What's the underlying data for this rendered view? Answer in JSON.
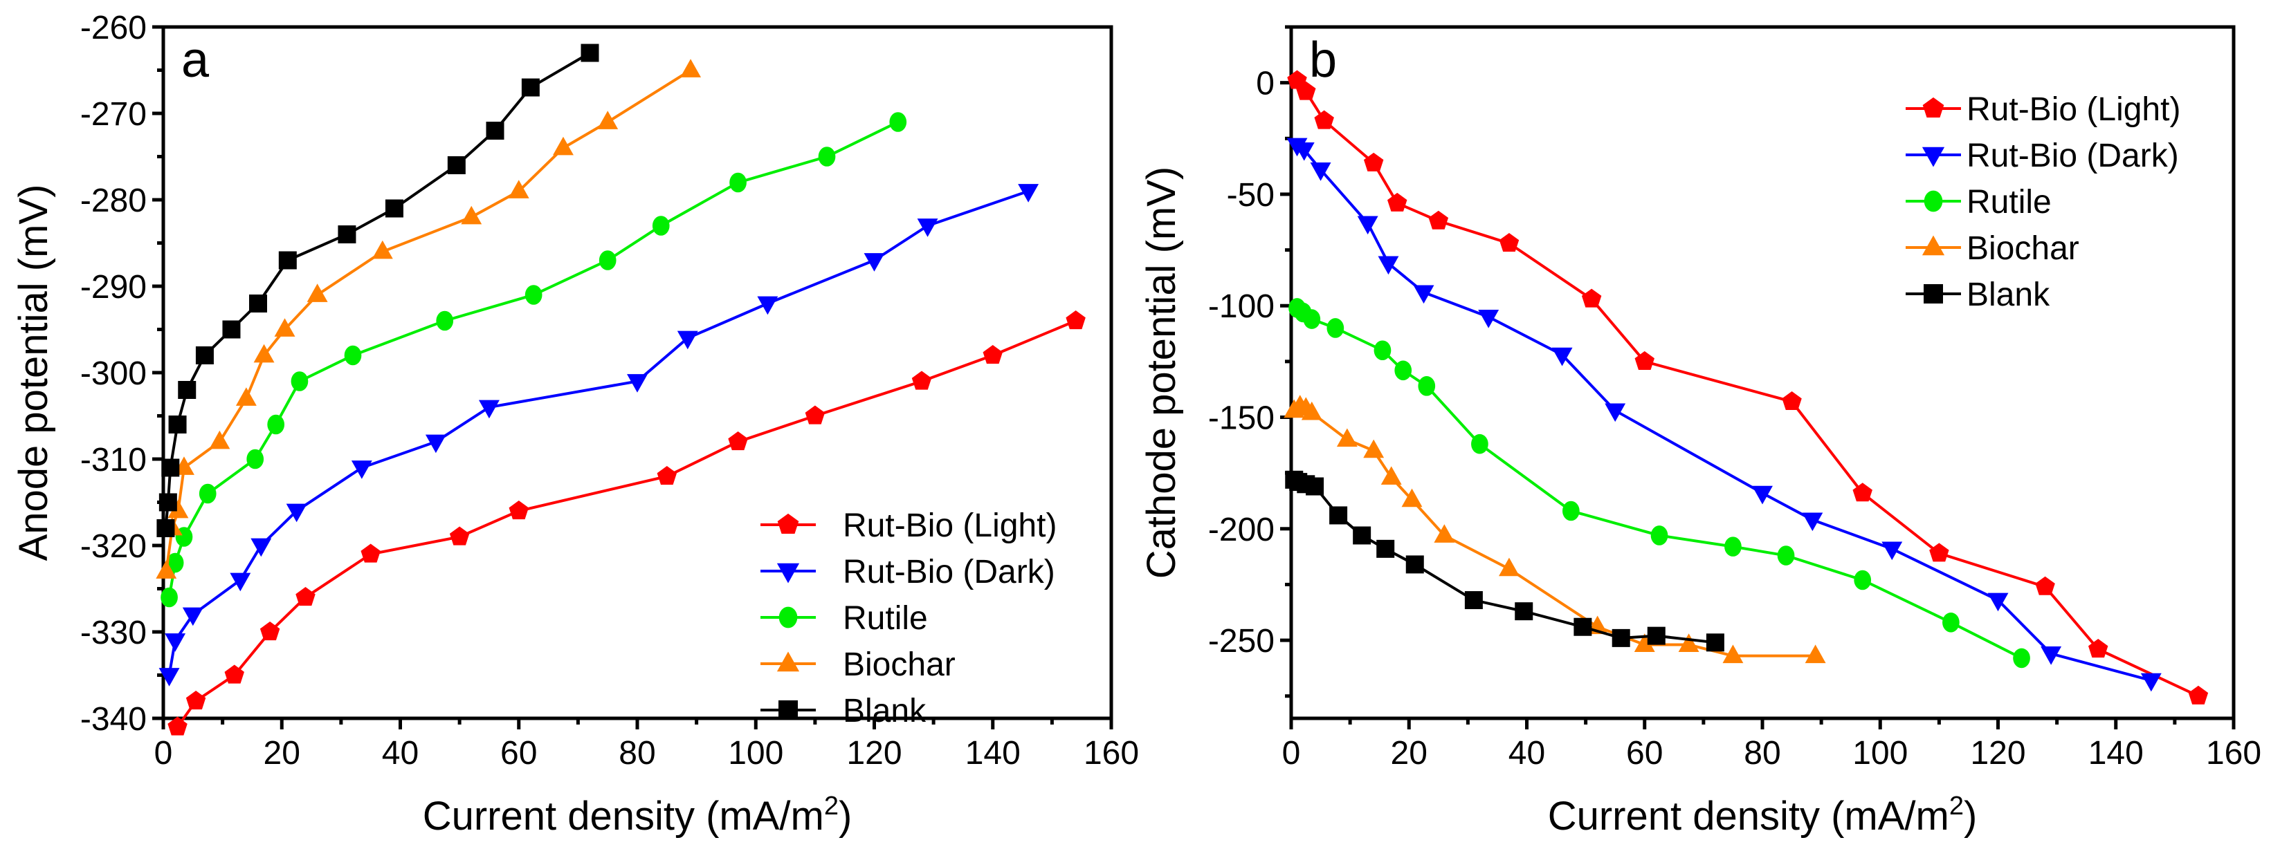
{
  "colors": {
    "light": "#ff0000",
    "dark": "#0000ff",
    "rutile": "#00ee00",
    "biochar": "#ff8000",
    "blank": "#000000"
  },
  "chart_data": [
    {
      "type": "line",
      "panel_label": "a",
      "xlabel": "Current density (mA/m",
      "xlabel_sup": "2",
      "xlabel_end": ")",
      "ylabel": "Anode potential (mV)",
      "xlim": [
        0,
        160
      ],
      "ylim": [
        -340,
        -260
      ],
      "xticks": [
        0,
        20,
        40,
        60,
        80,
        100,
        120,
        140,
        160
      ],
      "yticks": [
        -340,
        -330,
        -320,
        -310,
        -300,
        -290,
        -280,
        -270,
        -260
      ],
      "legend_position": "bottom-right",
      "series": [
        {
          "name": "Rut-Bio (Light)",
          "color_key": "light",
          "marker": "pentagon",
          "x": [
            2.4,
            5.5,
            12,
            18,
            24,
            35,
            50,
            60,
            85,
            97,
            110,
            128,
            140,
            154
          ],
          "y": [
            -341,
            -338,
            -335,
            -330,
            -326,
            -321,
            -319,
            -316,
            -312,
            -308,
            -305,
            -301,
            -298,
            -294
          ]
        },
        {
          "name": "Rut-Bio (Dark)",
          "color_key": "dark",
          "marker": "triangle-down",
          "x": [
            1,
            2,
            5,
            13,
            16.5,
            22.5,
            33.5,
            46,
            55,
            80,
            88.5,
            102,
            120,
            129,
            146
          ],
          "y": [
            -335,
            -331,
            -328,
            -324,
            -320,
            -316,
            -311,
            -308,
            -304,
            -301,
            -296,
            -292,
            -287,
            -283,
            -279
          ]
        },
        {
          "name": "Rutile",
          "color_key": "rutile",
          "marker": "circle",
          "x": [
            1,
            2,
            3.5,
            7.5,
            15.5,
            19,
            23,
            32,
            47.5,
            62.5,
            75,
            84,
            97,
            112,
            124
          ],
          "y": [
            -326,
            -322,
            -319,
            -314,
            -310,
            -306,
            -301,
            -298,
            -294,
            -291,
            -287,
            -283,
            -278,
            -275,
            -271
          ]
        },
        {
          "name": "Biochar",
          "color_key": "biochar",
          "marker": "triangle-up",
          "x": [
            0.5,
            1.5,
            2.5,
            3.5,
            9.5,
            14,
            17,
            20.5,
            26,
            37,
            52,
            60,
            67.5,
            75,
            89
          ],
          "y": [
            -323,
            -318,
            -316,
            -311,
            -308,
            -303,
            -298,
            -295,
            -291,
            -286,
            -282,
            -279,
            -274,
            -271,
            -265
          ]
        },
        {
          "name": "Blank",
          "color_key": "blank",
          "marker": "square",
          "x": [
            0.4,
            0.8,
            1.2,
            2.4,
            4,
            7,
            11.5,
            16,
            21,
            31,
            39,
            49.5,
            56,
            62,
            72
          ],
          "y": [
            -318,
            -315,
            -311,
            -306,
            -302,
            -298,
            -295,
            -292,
            -287,
            -284,
            -281,
            -276,
            -272,
            -267,
            -263
          ]
        }
      ]
    },
    {
      "type": "line",
      "panel_label": "b",
      "xlabel": "Current density (mA/m",
      "xlabel_sup": "2",
      "xlabel_end": ")",
      "ylabel": "Cathode potential (mV)",
      "xlim": [
        0,
        160
      ],
      "ylim": [
        -285,
        25
      ],
      "xticks": [
        0,
        20,
        40,
        60,
        80,
        100,
        120,
        140,
        160
      ],
      "yticks": [
        -250,
        -200,
        -150,
        -100,
        -50,
        0
      ],
      "legend_position": "top-right",
      "series": [
        {
          "name": "Rut-Bio (Light)",
          "color_key": "light",
          "marker": "pentagon",
          "x": [
            1,
            2.5,
            5.6,
            14,
            18,
            25,
            37,
            51,
            60,
            85,
            97,
            110,
            128,
            137,
            154
          ],
          "y": [
            1,
            -4,
            -17,
            -36,
            -54,
            -62,
            -72,
            -97,
            -125,
            -143,
            -184,
            -211,
            -226,
            -254,
            -275
          ]
        },
        {
          "name": "Rut-Bio (Dark)",
          "color_key": "dark",
          "marker": "triangle-down",
          "x": [
            1,
            2.2,
            5,
            13,
            16.5,
            22.5,
            33.5,
            46,
            55,
            80,
            88.5,
            102,
            120,
            129,
            146
          ],
          "y": [
            -28,
            -30,
            -39,
            -63,
            -81,
            -94,
            -105,
            -122,
            -147,
            -184,
            -196,
            -209,
            -232,
            -256,
            -268
          ]
        },
        {
          "name": "Rutile",
          "color_key": "rutile",
          "marker": "circle",
          "x": [
            1,
            2,
            3.5,
            7.5,
            15.5,
            19,
            23,
            32,
            47.5,
            62.5,
            75,
            84,
            97,
            112,
            124
          ],
          "y": [
            -101,
            -103,
            -106,
            -110,
            -120,
            -129,
            -136,
            -162,
            -192,
            -203,
            -208,
            -212,
            -223,
            -242,
            -258
          ]
        },
        {
          "name": "Biochar",
          "color_key": "biochar",
          "marker": "triangle-up",
          "x": [
            0.5,
            1.5,
            2.5,
            3.5,
            9.5,
            14,
            17,
            20.5,
            26,
            37,
            52,
            60,
            67.5,
            75,
            89
          ],
          "y": [
            -147,
            -145,
            -146,
            -148,
            -160,
            -165,
            -177,
            -187,
            -203,
            -218,
            -244,
            -252,
            -252,
            -257,
            -257
          ]
        },
        {
          "name": "Blank",
          "color_key": "blank",
          "marker": "square",
          "x": [
            0.5,
            1.2,
            2.5,
            4,
            8,
            12,
            16,
            21,
            31,
            39.5,
            49.5,
            56,
            62,
            72
          ],
          "y": [
            -178,
            -179,
            -180,
            -181,
            -194,
            -203,
            -209,
            -216,
            -232,
            -237,
            -244,
            -249,
            -248,
            -251
          ]
        }
      ]
    }
  ]
}
